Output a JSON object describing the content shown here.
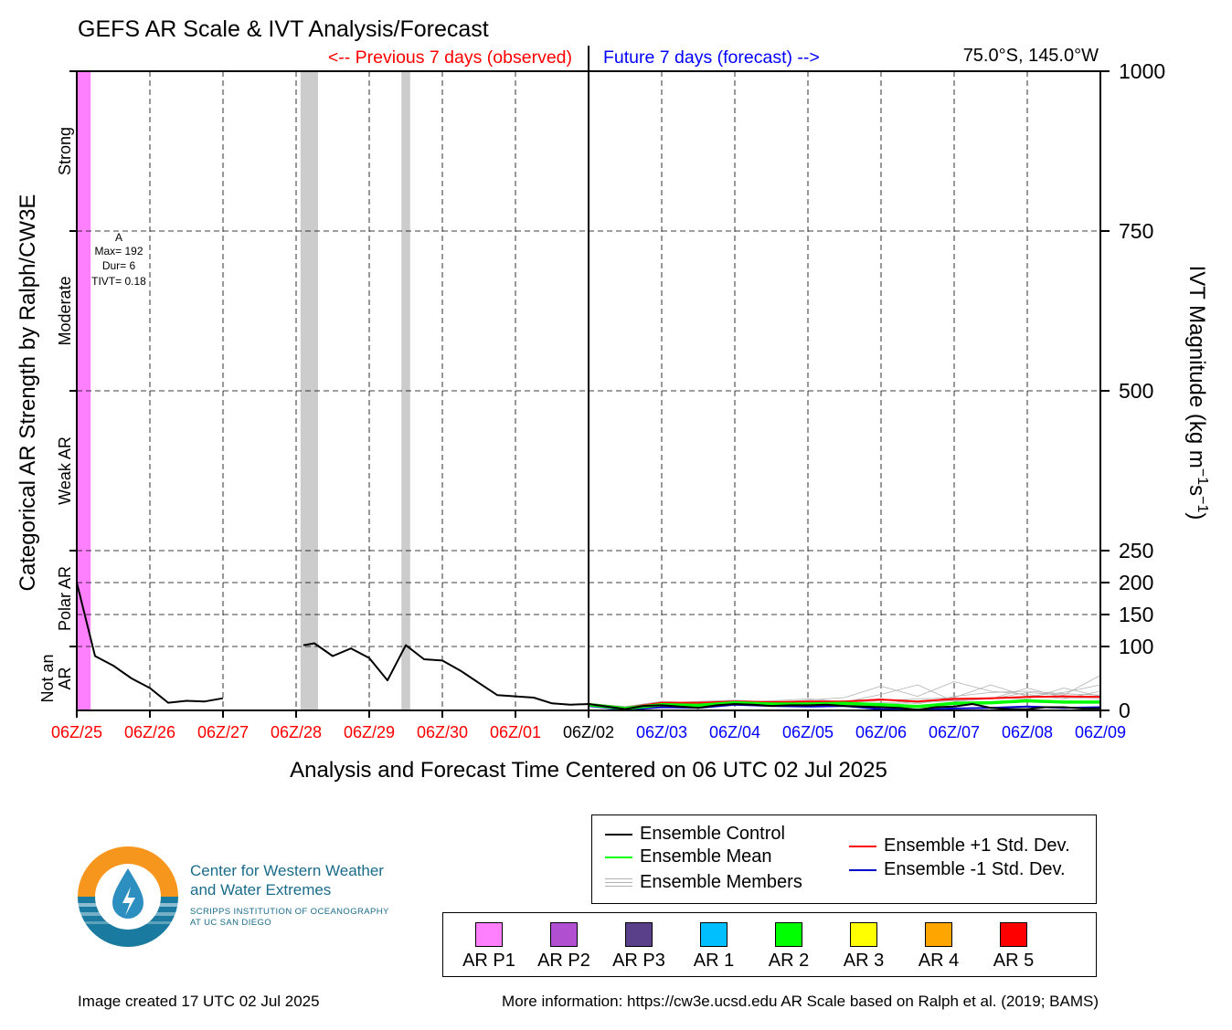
{
  "title": "GEFS AR Scale & IVT Analysis/Forecast",
  "previous_label": "<-- Previous 7 days (observed)",
  "future_label": "Future 7 days (forecast) -->",
  "location": "75.0°S, 145.0°W",
  "colors": {
    "observed": "#ff0000",
    "forecast": "#0000ff",
    "control": "#000000",
    "mean": "#00ff00",
    "members": "#b0b0b0",
    "plus_std": "#ff0000",
    "minus_std": "#0000cc",
    "missing": "#cccccc"
  },
  "chart_data": {
    "type": "line",
    "xlabel": "Analysis and Forecast Time Centered on 06 UTC 02 Jul 2025",
    "y_left_label": "Categorical AR Strength by Ralph/CW3E",
    "y_right_label": "IVT Magnitude (kg m⁻¹s⁻¹)",
    "y_right_label_base": "IVT Magnitude (kg m",
    "y_right_label_sup1": "−1",
    "y_right_label_mid": "s",
    "y_right_label_sup2": "−1",
    "y_right_label_end": ")",
    "ylim": [
      0,
      1000
    ],
    "xlim": [
      0,
      14
    ],
    "grid": true,
    "x_ticks": [
      {
        "x": 0,
        "label": "06Z/25",
        "color": "#ff0000"
      },
      {
        "x": 1,
        "label": "06Z/26",
        "color": "#ff0000"
      },
      {
        "x": 2,
        "label": "06Z/27",
        "color": "#ff0000"
      },
      {
        "x": 3,
        "label": "06Z/28",
        "color": "#ff0000"
      },
      {
        "x": 4,
        "label": "06Z/29",
        "color": "#ff0000"
      },
      {
        "x": 5,
        "label": "06Z/30",
        "color": "#ff0000"
      },
      {
        "x": 6,
        "label": "06Z/01",
        "color": "#ff0000"
      },
      {
        "x": 7,
        "label": "06Z/02",
        "color": "#000000"
      },
      {
        "x": 8,
        "label": "06Z/03",
        "color": "#0000ff"
      },
      {
        "x": 9,
        "label": "06Z/04",
        "color": "#0000ff"
      },
      {
        "x": 10,
        "label": "06Z/05",
        "color": "#0000ff"
      },
      {
        "x": 11,
        "label": "06Z/06",
        "color": "#0000ff"
      },
      {
        "x": 12,
        "label": "06Z/07",
        "color": "#0000ff"
      },
      {
        "x": 13,
        "label": "06Z/08",
        "color": "#0000ff"
      },
      {
        "x": 14,
        "label": "06Z/09",
        "color": "#0000ff"
      }
    ],
    "y_ticks": [
      0,
      100,
      150,
      200,
      250,
      500,
      750,
      1000
    ],
    "categories": [
      {
        "label": "Not an AR",
        "lines": [
          "Not an",
          "AR"
        ],
        "from": 0,
        "to": 100
      },
      {
        "label": "Polar AR",
        "lines": [
          "Polar AR"
        ],
        "from": 100,
        "to": 250
      },
      {
        "label": "Weak AR",
        "lines": [
          "Weak AR"
        ],
        "from": 250,
        "to": 500
      },
      {
        "label": "Moderate",
        "lines": [
          "Moderate"
        ],
        "from": 500,
        "to": 750
      },
      {
        "label": "Strong",
        "lines": [
          "Strong"
        ],
        "from": 750,
        "to": 1000
      }
    ],
    "ar_shading": [
      {
        "from": 0,
        "to": 0.19,
        "category": "AR P1",
        "color": "#ff80ff"
      }
    ],
    "missing_shading": [
      {
        "from": 3.06,
        "to": 3.3
      },
      {
        "from": 4.44,
        "to": 4.56
      }
    ],
    "event_annotation": {
      "label": "A",
      "max": "Max= 192",
      "dur": "Dur= 6",
      "tivt": "TIVT= 0.18"
    },
    "series": [
      {
        "name": "Ensemble Control",
        "color": "#000000",
        "segments": [
          [
            [
              0,
              200
            ],
            [
              0.25,
              85
            ],
            [
              0.5,
              70
            ],
            [
              0.75,
              50
            ],
            [
              1,
              35
            ],
            [
              1.25,
              12
            ],
            [
              1.5,
              15
            ],
            [
              1.75,
              14
            ],
            [
              2,
              19
            ]
          ],
          [
            [
              3.1,
              102
            ],
            [
              3.25,
              105
            ],
            [
              3.5,
              85
            ],
            [
              3.75,
              97
            ],
            [
              4,
              82
            ],
            [
              4.25,
              47
            ],
            [
              4.5,
              102
            ],
            [
              4.75,
              80
            ],
            [
              5,
              78
            ],
            [
              5.25,
              62
            ],
            [
              5.5,
              43
            ],
            [
              5.75,
              24
            ],
            [
              6,
              22
            ],
            [
              6.25,
              20
            ],
            [
              6.5,
              11
            ],
            [
              6.75,
              9
            ],
            [
              7,
              10
            ],
            [
              7.25,
              6
            ],
            [
              7.5,
              2
            ],
            [
              7.75,
              7
            ],
            [
              8,
              8
            ],
            [
              8.25,
              6
            ],
            [
              8.5,
              4
            ],
            [
              8.75,
              8
            ],
            [
              9,
              10
            ],
            [
              9.25,
              9
            ],
            [
              9.5,
              7
            ],
            [
              9.75,
              8
            ],
            [
              10,
              8
            ],
            [
              10.25,
              9
            ],
            [
              10.5,
              7
            ],
            [
              10.75,
              6
            ],
            [
              11,
              5
            ],
            [
              11.25,
              4
            ],
            [
              11.5,
              1
            ],
            [
              11.75,
              5
            ],
            [
              12,
              6
            ],
            [
              12.25,
              10
            ],
            [
              12.5,
              4
            ],
            [
              12.75,
              2
            ],
            [
              13,
              2
            ],
            [
              13.25,
              5
            ],
            [
              13.5,
              5
            ],
            [
              13.75,
              3
            ],
            [
              14,
              3
            ]
          ]
        ]
      },
      {
        "name": "Ensemble Mean",
        "color": "#00ff00",
        "segments": [
          [
            [
              7,
              9
            ],
            [
              7.5,
              3
            ],
            [
              8,
              9
            ],
            [
              8.5,
              8
            ],
            [
              9,
              12
            ],
            [
              9.5,
              10
            ],
            [
              10,
              10
            ],
            [
              10.5,
              11
            ],
            [
              11,
              9
            ],
            [
              11.5,
              6
            ],
            [
              12,
              11
            ],
            [
              12.5,
              12
            ],
            [
              13,
              15
            ],
            [
              13.5,
              13
            ],
            [
              14,
              13
            ]
          ]
        ]
      },
      {
        "name": "Ensemble +1 Std. Dev.",
        "color": "#ff0000",
        "segments": [
          [
            [
              7,
              10
            ],
            [
              7.5,
              4
            ],
            [
              8,
              12
            ],
            [
              8.5,
              12
            ],
            [
              9,
              14
            ],
            [
              9.5,
              13
            ],
            [
              10,
              14
            ],
            [
              10.5,
              14
            ],
            [
              11,
              17
            ],
            [
              11.5,
              14
            ],
            [
              12,
              18
            ],
            [
              12.5,
              19
            ],
            [
              13,
              21
            ],
            [
              13.5,
              22
            ],
            [
              14,
              21
            ]
          ]
        ]
      },
      {
        "name": "Ensemble -1 Std. Dev.",
        "color": "#0000cc",
        "segments": [
          [
            [
              7,
              7
            ],
            [
              7.5,
              1
            ],
            [
              8,
              5
            ],
            [
              8.5,
              4
            ],
            [
              9,
              9
            ],
            [
              9.5,
              7
            ],
            [
              10,
              6
            ],
            [
              10.5,
              7
            ],
            [
              11,
              2
            ],
            [
              11.5,
              1
            ],
            [
              12,
              3
            ],
            [
              12.5,
              4
            ],
            [
              13,
              6
            ],
            [
              13.5,
              4
            ],
            [
              14,
              5
            ]
          ]
        ]
      }
    ],
    "members": [
      [
        [
          7,
          10
        ],
        [
          7.5,
          5
        ],
        [
          8,
          12
        ],
        [
          8.5,
          14
        ],
        [
          9,
          16
        ],
        [
          9.5,
          13
        ],
        [
          10,
          12
        ],
        [
          10.5,
          15
        ],
        [
          11,
          18
        ],
        [
          11.5,
          10
        ],
        [
          12,
          22
        ],
        [
          12.5,
          28
        ],
        [
          13,
          30
        ],
        [
          13.5,
          26
        ],
        [
          14,
          24
        ]
      ],
      [
        [
          7,
          8
        ],
        [
          7.5,
          3
        ],
        [
          8,
          10
        ],
        [
          8.5,
          11
        ],
        [
          9,
          12
        ],
        [
          9.5,
          15
        ],
        [
          10,
          18
        ],
        [
          10.5,
          13
        ],
        [
          11,
          25
        ],
        [
          11.5,
          40
        ],
        [
          12,
          14
        ],
        [
          12.5,
          18
        ],
        [
          13,
          35
        ],
        [
          13.5,
          20
        ],
        [
          14,
          18
        ]
      ],
      [
        [
          7,
          11
        ],
        [
          7.5,
          6
        ],
        [
          8,
          14
        ],
        [
          8.5,
          12
        ],
        [
          9,
          10
        ],
        [
          9.5,
          12
        ],
        [
          10,
          16
        ],
        [
          10.5,
          20
        ],
        [
          11,
          38
        ],
        [
          11.5,
          22
        ],
        [
          12,
          45
        ],
        [
          12.5,
          30
        ],
        [
          13,
          25
        ],
        [
          13.5,
          18
        ],
        [
          14,
          30
        ]
      ],
      [
        [
          7,
          9
        ],
        [
          7.5,
          4
        ],
        [
          8,
          8
        ],
        [
          8.5,
          9
        ],
        [
          9,
          14
        ],
        [
          9.5,
          11
        ],
        [
          10,
          11
        ],
        [
          10.5,
          12
        ],
        [
          11,
          15
        ],
        [
          11.5,
          18
        ],
        [
          12,
          20
        ],
        [
          12.5,
          40
        ],
        [
          13,
          22
        ],
        [
          13.5,
          28
        ],
        [
          14,
          40
        ]
      ],
      [
        [
          7,
          10
        ],
        [
          7.5,
          6
        ],
        [
          8,
          11
        ],
        [
          8.5,
          13
        ],
        [
          9,
          11
        ],
        [
          9.5,
          14
        ],
        [
          10,
          12
        ],
        [
          10.5,
          10
        ],
        [
          11,
          12
        ],
        [
          11.5,
          14
        ],
        [
          12,
          16
        ],
        [
          12.5,
          18
        ],
        [
          13,
          28
        ],
        [
          13.5,
          24
        ],
        [
          14,
          55
        ]
      ],
      [
        [
          7,
          9
        ],
        [
          7.5,
          3
        ],
        [
          8,
          9
        ],
        [
          8.5,
          10
        ],
        [
          9,
          13
        ],
        [
          9.5,
          12
        ],
        [
          10,
          9
        ],
        [
          10.5,
          11
        ],
        [
          11,
          10
        ],
        [
          11.5,
          12
        ],
        [
          12,
          15
        ],
        [
          12.5,
          20
        ],
        [
          13,
          18
        ],
        [
          13.5,
          35
        ],
        [
          14,
          22
        ]
      ]
    ]
  },
  "legend": {
    "control": "Ensemble Control",
    "mean": "Ensemble Mean",
    "members": "Ensemble Members",
    "plus_std": "Ensemble +1 Std. Dev.",
    "minus_std": "Ensemble -1 Std. Dev."
  },
  "ar_categories": [
    {
      "label": "AR P1",
      "color": "#ff80ff"
    },
    {
      "label": "AR P2",
      "color": "#b04fcf"
    },
    {
      "label": "AR P3",
      "color": "#5a3f8a"
    },
    {
      "label": "AR 1",
      "color": "#00bfff"
    },
    {
      "label": "AR 2",
      "color": "#00ff00"
    },
    {
      "label": "AR 3",
      "color": "#ffff00"
    },
    {
      "label": "AR 4",
      "color": "#ffa500"
    },
    {
      "label": "AR 5",
      "color": "#ff0000"
    }
  ],
  "logo": {
    "line1": "Center for Western Weather",
    "line2": "and Water Extremes",
    "line3": "SCRIPPS INSTITUTION OF OCEANOGRAPHY",
    "line4": "AT UC SAN DIEGO"
  },
  "footer": {
    "created": "Image created 17 UTC 02 Jul 2025",
    "info": "More information: https://cw3e.ucsd.edu AR Scale based on Ralph et al. (2019; BAMS)"
  }
}
